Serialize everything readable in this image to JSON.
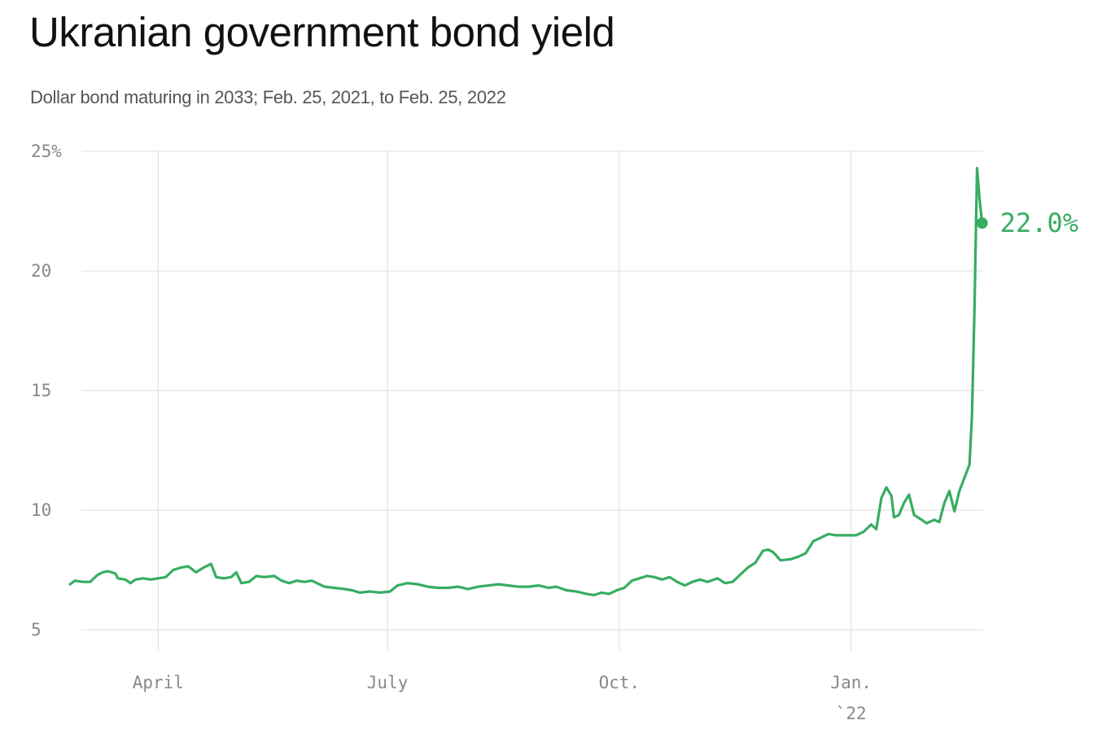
{
  "title": "Ukranian government bond yield",
  "subtitle": "Dollar bond maturing in 2033; Feb. 25, 2021, to Feb. 25, 2022",
  "colors": {
    "line": "#37ad62",
    "grid": "#dddddd",
    "tick": "#888888"
  },
  "chart_data": {
    "type": "line",
    "title": "Ukranian government bond yield",
    "subtitle": "Dollar bond maturing in 2033; Feb. 25, 2021, to Feb. 25, 2022",
    "xlabel": "",
    "ylabel": "",
    "ylim": [
      5,
      25
    ],
    "xlim": [
      "2021-02-25",
      "2022-02-25"
    ],
    "grid": true,
    "y_ticks": [
      {
        "value": 25,
        "label": "25%"
      },
      {
        "value": 20,
        "label": "20"
      },
      {
        "value": 15,
        "label": "15"
      },
      {
        "value": 10,
        "label": "10"
      },
      {
        "value": 5,
        "label": "5"
      }
    ],
    "x_ticks": [
      {
        "date": "2021-04-01",
        "label": "April"
      },
      {
        "date": "2021-07-01",
        "label": "July"
      },
      {
        "date": "2021-10-01",
        "label": "Oct."
      },
      {
        "date": "2022-01-01",
        "label": "Jan.",
        "sublabel": "`22"
      }
    ],
    "end_label": "22.0%",
    "series": [
      {
        "color": "#37ad62",
        "points": [
          [
            "2021-02-25",
            6.9
          ],
          [
            "2021-02-27",
            7.05
          ],
          [
            "2021-03-02",
            7.0
          ],
          [
            "2021-03-05",
            7.0
          ],
          [
            "2021-03-08",
            7.3
          ],
          [
            "2021-03-10",
            7.4
          ],
          [
            "2021-03-12",
            7.45
          ],
          [
            "2021-03-15",
            7.35
          ],
          [
            "2021-03-16",
            7.15
          ],
          [
            "2021-03-19",
            7.1
          ],
          [
            "2021-03-21",
            6.95
          ],
          [
            "2021-03-23",
            7.1
          ],
          [
            "2021-03-26",
            7.15
          ],
          [
            "2021-03-29",
            7.1
          ],
          [
            "2021-04-01",
            7.15
          ],
          [
            "2021-04-04",
            7.2
          ],
          [
            "2021-04-07",
            7.5
          ],
          [
            "2021-04-10",
            7.6
          ],
          [
            "2021-04-13",
            7.65
          ],
          [
            "2021-04-16",
            7.4
          ],
          [
            "2021-04-19",
            7.6
          ],
          [
            "2021-04-22",
            7.75
          ],
          [
            "2021-04-24",
            7.2
          ],
          [
            "2021-04-27",
            7.15
          ],
          [
            "2021-04-30",
            7.2
          ],
          [
            "2021-05-02",
            7.4
          ],
          [
            "2021-05-04",
            6.95
          ],
          [
            "2021-05-07",
            7.0
          ],
          [
            "2021-05-10",
            7.25
          ],
          [
            "2021-05-13",
            7.2
          ],
          [
            "2021-05-17",
            7.25
          ],
          [
            "2021-05-20",
            7.05
          ],
          [
            "2021-05-23",
            6.95
          ],
          [
            "2021-05-26",
            7.05
          ],
          [
            "2021-05-29",
            7.0
          ],
          [
            "2021-06-01",
            7.05
          ],
          [
            "2021-06-03",
            6.95
          ],
          [
            "2021-06-06",
            6.8
          ],
          [
            "2021-06-10",
            6.75
          ],
          [
            "2021-06-14",
            6.7
          ],
          [
            "2021-06-17",
            6.65
          ],
          [
            "2021-06-20",
            6.55
          ],
          [
            "2021-06-24",
            6.6
          ],
          [
            "2021-06-28",
            6.55
          ],
          [
            "2021-07-02",
            6.6
          ],
          [
            "2021-07-05",
            6.85
          ],
          [
            "2021-07-09",
            6.95
          ],
          [
            "2021-07-13",
            6.9
          ],
          [
            "2021-07-17",
            6.8
          ],
          [
            "2021-07-21",
            6.75
          ],
          [
            "2021-07-25",
            6.75
          ],
          [
            "2021-07-29",
            6.8
          ],
          [
            "2021-08-02",
            6.7
          ],
          [
            "2021-08-06",
            6.8
          ],
          [
            "2021-08-10",
            6.85
          ],
          [
            "2021-08-14",
            6.9
          ],
          [
            "2021-08-18",
            6.85
          ],
          [
            "2021-08-22",
            6.8
          ],
          [
            "2021-08-26",
            6.8
          ],
          [
            "2021-08-30",
            6.85
          ],
          [
            "2021-09-03",
            6.75
          ],
          [
            "2021-09-06",
            6.8
          ],
          [
            "2021-09-10",
            6.65
          ],
          [
            "2021-09-14",
            6.6
          ],
          [
            "2021-09-18",
            6.5
          ],
          [
            "2021-09-21",
            6.45
          ],
          [
            "2021-09-24",
            6.55
          ],
          [
            "2021-09-27",
            6.5
          ],
          [
            "2021-09-30",
            6.65
          ],
          [
            "2021-10-03",
            6.75
          ],
          [
            "2021-10-06",
            7.05
          ],
          [
            "2021-10-09",
            7.15
          ],
          [
            "2021-10-12",
            7.25
          ],
          [
            "2021-10-15",
            7.2
          ],
          [
            "2021-10-18",
            7.1
          ],
          [
            "2021-10-21",
            7.2
          ],
          [
            "2021-10-24",
            7.0
          ],
          [
            "2021-10-27",
            6.85
          ],
          [
            "2021-10-30",
            7.0
          ],
          [
            "2021-11-02",
            7.1
          ],
          [
            "2021-11-05",
            7.0
          ],
          [
            "2021-11-09",
            7.15
          ],
          [
            "2021-11-12",
            6.95
          ],
          [
            "2021-11-15",
            7.0
          ],
          [
            "2021-11-18",
            7.3
          ],
          [
            "2021-11-21",
            7.6
          ],
          [
            "2021-11-24",
            7.8
          ],
          [
            "2021-11-27",
            8.3
          ],
          [
            "2021-11-29",
            8.35
          ],
          [
            "2021-12-01",
            8.25
          ],
          [
            "2021-12-04",
            7.9
          ],
          [
            "2021-12-08",
            7.95
          ],
          [
            "2021-12-11",
            8.05
          ],
          [
            "2021-12-14",
            8.2
          ],
          [
            "2021-12-17",
            8.7
          ],
          [
            "2021-12-20",
            8.85
          ],
          [
            "2021-12-23",
            9.0
          ],
          [
            "2021-12-26",
            8.95
          ],
          [
            "2021-12-30",
            8.95
          ],
          [
            "2022-01-03",
            8.95
          ],
          [
            "2022-01-06",
            9.1
          ],
          [
            "2022-01-09",
            9.4
          ],
          [
            "2022-01-11",
            9.2
          ],
          [
            "2022-01-13",
            10.5
          ],
          [
            "2022-01-15",
            10.95
          ],
          [
            "2022-01-17",
            10.6
          ],
          [
            "2022-01-18",
            9.7
          ],
          [
            "2022-01-20",
            9.8
          ],
          [
            "2022-01-22",
            10.3
          ],
          [
            "2022-01-24",
            10.65
          ],
          [
            "2022-01-26",
            9.8
          ],
          [
            "2022-01-29",
            9.6
          ],
          [
            "2022-01-31",
            9.45
          ],
          [
            "2022-02-03",
            9.6
          ],
          [
            "2022-02-05",
            9.5
          ],
          [
            "2022-02-07",
            10.3
          ],
          [
            "2022-02-09",
            10.8
          ],
          [
            "2022-02-11",
            9.95
          ],
          [
            "2022-02-13",
            10.8
          ],
          [
            "2022-02-17",
            11.9
          ],
          [
            "2022-02-18",
            14.0
          ],
          [
            "2022-02-19",
            18.5
          ],
          [
            "2022-02-20",
            24.3
          ],
          [
            "2022-02-21",
            23.0
          ],
          [
            "2022-02-22",
            22.0
          ]
        ]
      }
    ]
  }
}
